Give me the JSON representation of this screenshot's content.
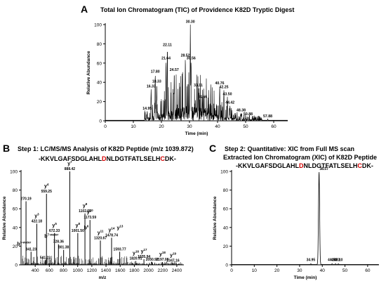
{
  "panels": {
    "A": {
      "letter": "A",
      "title": "Total Ion Chromatogram (TIC) of Providence K82D Tryptic Digest"
    },
    "B": {
      "letter": "B",
      "title": "Step 1: LC/MS/MS Analysis of K82D Peptide (m/z 1039.872)",
      "peptide": [
        {
          "t": "-KKVLGAFSDGLAHL",
          "c": "#000000"
        },
        {
          "t": "D",
          "c": "#d40000"
        },
        {
          "t": "NLDGTFATLSELH",
          "c": "#000000"
        },
        {
          "t": "C",
          "c": "#d40000"
        },
        {
          "t": "DK-",
          "c": "#000000"
        }
      ]
    },
    "C": {
      "letter": "C",
      "title1": "Step 2: Quantitative: XIC from Full MS scan",
      "title2": "Extracted Ion Chromatogram (XIC) of K82D Peptide",
      "peptide": [
        {
          "t": "-KKVLGAFSDGLAHL",
          "c": "#000000"
        },
        {
          "t": "D",
          "c": "#d40000"
        },
        {
          "t": "NLDGTFATLSELH",
          "c": "#000000"
        },
        {
          "t": "C",
          "c": "#d40000"
        },
        {
          "t": "DK-",
          "c": "#000000"
        }
      ]
    }
  },
  "colors": {
    "trace": "#000000",
    "highlight": "#d40000"
  },
  "chart_data": [
    {
      "id": "A",
      "type": "line",
      "xlabel": "Time (min)",
      "ylabel": "Relative Abundance",
      "xlim": [
        0,
        65
      ],
      "ylim": [
        0,
        100
      ],
      "xticks": [
        0,
        10,
        20,
        30,
        40,
        50,
        60
      ],
      "yticks": [
        0,
        20,
        40,
        60,
        80,
        100
      ],
      "peaks": [
        {
          "x": 14.95,
          "y": 10,
          "label": "14.95"
        },
        {
          "x": 16.33,
          "y": 33,
          "label": "16.33"
        },
        {
          "x": 17.8,
          "y": 48,
          "label": "17.80"
        },
        {
          "x": 18.33,
          "y": 38,
          "label": "18.33"
        },
        {
          "x": 21.64,
          "y": 62,
          "label": "21.64"
        },
        {
          "x": 22.11,
          "y": 76,
          "label": "22.11"
        },
        {
          "x": 24.57,
          "y": 50,
          "label": "24.57"
        },
        {
          "x": 28.52,
          "y": 65,
          "label": "28.52"
        },
        {
          "x": 30.3,
          "y": 100,
          "label": "30.30"
        },
        {
          "x": 30.56,
          "y": 62,
          "label": "30.56"
        },
        {
          "x": 33.11,
          "y": 34,
          "label": "33.11"
        },
        {
          "x": 34.66,
          "y": 22,
          "label": "34.66"
        },
        {
          "x": 40.76,
          "y": 36,
          "label": "40.76"
        },
        {
          "x": 42.25,
          "y": 32,
          "label": "42.25"
        },
        {
          "x": 43.5,
          "y": 25,
          "label": "43.50"
        },
        {
          "x": 44.42,
          "y": 16,
          "label": "44.42"
        },
        {
          "x": 48.38,
          "y": 8,
          "label": "48.38"
        },
        {
          "x": 50.88,
          "y": 4,
          "label": "50.88"
        },
        {
          "x": 57.88,
          "y": 2,
          "label": "57.88"
        }
      ]
    },
    {
      "id": "B",
      "type": "bar",
      "xlabel": "m/z",
      "ylabel": "Relative Abundance",
      "xlim": [
        200,
        2500
      ],
      "ylim": [
        0,
        100
      ],
      "xticks": [
        400,
        600,
        800,
        1000,
        1200,
        1400,
        1600,
        1800,
        2000,
        2200,
        2400
      ],
      "yticks": [
        0,
        20,
        40,
        60,
        80,
        100
      ],
      "peaks": [
        {
          "x": 270.19,
          "y": 68,
          "label": "270.19",
          "ion": ""
        },
        {
          "x": 341.23,
          "y": 14,
          "label": "341.23",
          "ion": "b",
          "sup": "3-water"
        },
        {
          "x": 422.18,
          "y": 44,
          "label": "422.18",
          "ion": "y",
          "sup": "3"
        },
        {
          "x": 541.23,
          "y": 5,
          "label": "541.23",
          "ion": ""
        },
        {
          "x": 559.25,
          "y": 76,
          "label": "559.25",
          "ion": "y",
          "sup": "4"
        },
        {
          "x": 672.33,
          "y": 34,
          "label": "672.33",
          "ion": "y",
          "sup": "5"
        },
        {
          "x": 728.36,
          "y": 22,
          "label": "728.36",
          "ion": "b",
          "sup": "7-water"
        },
        {
          "x": 801.38,
          "y": 16,
          "label": "801.38",
          "ion": ""
        },
        {
          "x": 888.42,
          "y": 100,
          "label": "888.42",
          "ion": "y",
          "sup": "7"
        },
        {
          "x": 1001.5,
          "y": 34,
          "label": "1001.50",
          "ion": "y",
          "sup": "8"
        },
        {
          "x": 1102.55,
          "y": 55,
          "label": "1102.55",
          "ion": "y",
          "sup": "9"
        },
        {
          "x": 1173.59,
          "y": 48,
          "label": "1173.59",
          "ion": "y",
          "sup": "10"
        },
        {
          "x": 1320.67,
          "y": 26,
          "label": "1320.67",
          "ion": "y",
          "sup": "11"
        },
        {
          "x": 1478.74,
          "y": 29,
          "label": "1478.74",
          "ion": "y",
          "sup": "14"
        },
        {
          "x": 1593.77,
          "y": 14,
          "label": "1593.77",
          "ion": ""
        },
        {
          "x": 1820.91,
          "y": 4,
          "label": "1820.91",
          "ion": "y",
          "sup": "16"
        },
        {
          "x": 1935.94,
          "y": 6,
          "label": "1935.94",
          "ion": "y",
          "sup": "17"
        },
        {
          "x": 2050.92,
          "y": 3,
          "label": "2050.92",
          "ion": ""
        },
        {
          "x": 2197.08,
          "y": 3,
          "label": "2197.08",
          "ion": "y",
          "sup": "18"
        },
        {
          "x": 2347.16,
          "y": 2,
          "label": "2347.16",
          "ion": "y",
          "sup": "19"
        }
      ],
      "annotations": [
        {
          "ion": "y",
          "sup": "13",
          "near": 1478.74
        },
        {
          "ion": "b",
          "sup": "6",
          "near": 1001.5
        }
      ]
    },
    {
      "id": "C",
      "type": "line",
      "xlabel": "Time (min)",
      "ylabel": "Relative Abundance",
      "xlim": [
        0,
        65
      ],
      "ylim": [
        0,
        100
      ],
      "xticks": [
        0,
        10,
        20,
        30,
        40,
        50,
        60
      ],
      "yticks": [
        0,
        20,
        40,
        60,
        80,
        100
      ],
      "peaks": [
        {
          "x": 34.95,
          "y": 1,
          "label": "34.95"
        },
        {
          "x": 38.57,
          "y": 100,
          "label": "38.57"
        },
        {
          "x": 44.33,
          "y": 1,
          "label": "44.33"
        },
        {
          "x": 45.83,
          "y": 1,
          "label": "45.83"
        },
        {
          "x": 47.1,
          "y": 1,
          "label": "47.10"
        }
      ]
    }
  ]
}
